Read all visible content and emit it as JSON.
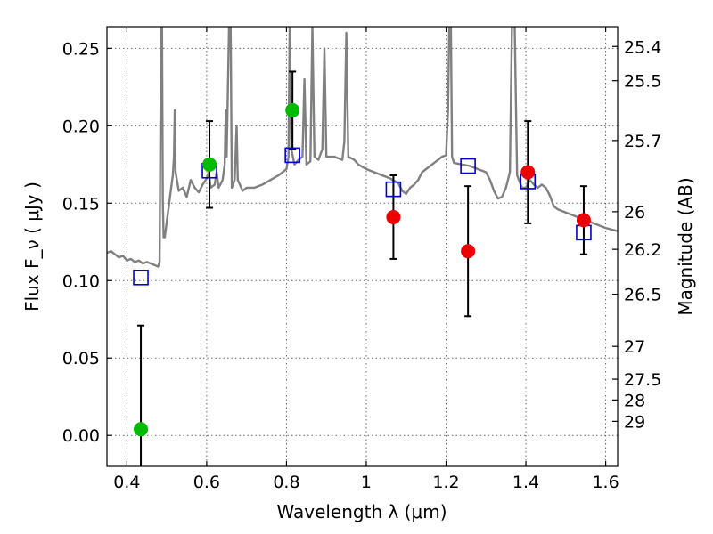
{
  "chart_data": {
    "type": "scatter",
    "xlabel": "Wavelength  λ (μm)",
    "ylabel": "Flux  F_ν  ( μJy )",
    "ylabel_right": "Magnitude (AB)",
    "xlim": [
      0.35,
      1.63
    ],
    "ylim": [
      -0.02,
      0.264
    ],
    "grid": true,
    "x_ticks": [
      {
        "value": 0.4,
        "label": "0.4"
      },
      {
        "value": 0.6,
        "label": "0.6"
      },
      {
        "value": 0.8,
        "label": "0.8"
      },
      {
        "value": 1.0,
        "label": "1"
      },
      {
        "value": 1.2,
        "label": "1.2"
      },
      {
        "value": 1.4,
        "label": "1.4"
      },
      {
        "value": 1.6,
        "label": "1.6"
      }
    ],
    "y_ticks": [
      {
        "value": 0.0,
        "label": "0.00"
      },
      {
        "value": 0.05,
        "label": "0.05"
      },
      {
        "value": 0.1,
        "label": "0.10"
      },
      {
        "value": 0.15,
        "label": "0.15"
      },
      {
        "value": 0.2,
        "label": "0.20"
      },
      {
        "value": 0.25,
        "label": "0.25"
      }
    ],
    "mag_ticks": [
      {
        "flux": 0.2512,
        "label": "25.4"
      },
      {
        "flux": 0.2291,
        "label": "25.5"
      },
      {
        "flux": 0.1905,
        "label": "25.7"
      },
      {
        "flux": 0.1445,
        "label": "26"
      },
      {
        "flux": 0.1202,
        "label": "26.2"
      },
      {
        "flux": 0.0912,
        "label": "26.5"
      },
      {
        "flux": 0.0575,
        "label": "27"
      },
      {
        "flux": 0.0363,
        "label": "27.5"
      },
      {
        "flux": 0.0229,
        "label": "28"
      },
      {
        "flux": 0.0091,
        "label": "29"
      }
    ],
    "model_spectrum": {
      "color": "#808080",
      "points": [
        [
          0.35,
          0.118
        ],
        [
          0.36,
          0.119
        ],
        [
          0.37,
          0.117
        ],
        [
          0.38,
          0.115
        ],
        [
          0.39,
          0.116
        ],
        [
          0.4,
          0.113
        ],
        [
          0.41,
          0.114
        ],
        [
          0.42,
          0.112
        ],
        [
          0.43,
          0.113
        ],
        [
          0.44,
          0.111
        ],
        [
          0.45,
          0.112
        ],
        [
          0.46,
          0.111
        ],
        [
          0.47,
          0.11
        ],
        [
          0.478,
          0.109
        ],
        [
          0.482,
          0.112
        ],
        [
          0.484,
          0.2
        ],
        [
          0.486,
          0.264
        ],
        [
          0.488,
          0.264
        ],
        [
          0.49,
          0.15
        ],
        [
          0.492,
          0.128
        ],
        [
          0.495,
          0.128
        ],
        [
          0.5,
          0.138
        ],
        [
          0.505,
          0.148
        ],
        [
          0.51,
          0.158
        ],
        [
          0.515,
          0.168
        ],
        [
          0.518,
          0.18
        ],
        [
          0.52,
          0.21
        ],
        [
          0.522,
          0.17
        ],
        [
          0.53,
          0.158
        ],
        [
          0.54,
          0.16
        ],
        [
          0.55,
          0.154
        ],
        [
          0.56,
          0.165
        ],
        [
          0.57,
          0.16
        ],
        [
          0.58,
          0.157
        ],
        [
          0.59,
          0.162
        ],
        [
          0.6,
          0.166
        ],
        [
          0.605,
          0.17
        ],
        [
          0.61,
          0.16
        ],
        [
          0.62,
          0.162
        ],
        [
          0.625,
          0.17
        ],
        [
          0.63,
          0.16
        ],
        [
          0.64,
          0.165
        ],
        [
          0.645,
          0.175
        ],
        [
          0.648,
          0.21
        ],
        [
          0.65,
          0.18
        ],
        [
          0.656,
          0.264
        ],
        [
          0.66,
          0.264
        ],
        [
          0.663,
          0.16
        ],
        [
          0.67,
          0.165
        ],
        [
          0.675,
          0.2
        ],
        [
          0.678,
          0.165
        ],
        [
          0.69,
          0.158
        ],
        [
          0.7,
          0.16
        ],
        [
          0.72,
          0.16
        ],
        [
          0.74,
          0.162
        ],
        [
          0.76,
          0.165
        ],
        [
          0.78,
          0.168
        ],
        [
          0.79,
          0.17
        ],
        [
          0.8,
          0.172
        ],
        [
          0.805,
          0.18
        ],
        [
          0.808,
          0.264
        ],
        [
          0.812,
          0.185
        ],
        [
          0.82,
          0.175
        ],
        [
          0.83,
          0.178
        ],
        [
          0.84,
          0.18
        ],
        [
          0.845,
          0.23
        ],
        [
          0.85,
          0.175
        ],
        [
          0.86,
          0.177
        ],
        [
          0.865,
          0.264
        ],
        [
          0.87,
          0.18
        ],
        [
          0.88,
          0.178
        ],
        [
          0.89,
          0.185
        ],
        [
          0.895,
          0.25
        ],
        [
          0.9,
          0.18
        ],
        [
          0.91,
          0.18
        ],
        [
          0.92,
          0.18
        ],
        [
          0.94,
          0.178
        ],
        [
          0.945,
          0.19
        ],
        [
          0.95,
          0.26
        ],
        [
          0.955,
          0.18
        ],
        [
          0.97,
          0.178
        ],
        [
          0.98,
          0.175
        ],
        [
          1.0,
          0.172
        ],
        [
          1.02,
          0.17
        ],
        [
          1.04,
          0.168
        ],
        [
          1.06,
          0.166
        ],
        [
          1.08,
          0.163
        ],
        [
          1.09,
          0.158
        ],
        [
          1.1,
          0.156
        ],
        [
          1.11,
          0.16
        ],
        [
          1.12,
          0.162
        ],
        [
          1.13,
          0.165
        ],
        [
          1.14,
          0.17
        ],
        [
          1.15,
          0.172
        ],
        [
          1.16,
          0.174
        ],
        [
          1.17,
          0.176
        ],
        [
          1.18,
          0.178
        ],
        [
          1.19,
          0.18
        ],
        [
          1.2,
          0.181
        ],
        [
          1.205,
          0.21
        ],
        [
          1.208,
          0.264
        ],
        [
          1.212,
          0.264
        ],
        [
          1.215,
          0.18
        ],
        [
          1.22,
          0.176
        ],
        [
          1.24,
          0.175
        ],
        [
          1.26,
          0.174
        ],
        [
          1.28,
          0.172
        ],
        [
          1.3,
          0.17
        ],
        [
          1.31,
          0.165
        ],
        [
          1.32,
          0.158
        ],
        [
          1.33,
          0.153
        ],
        [
          1.34,
          0.154
        ],
        [
          1.35,
          0.16
        ],
        [
          1.36,
          0.17
        ],
        [
          1.365,
          0.264
        ],
        [
          1.372,
          0.264
        ],
        [
          1.378,
          0.168
        ],
        [
          1.39,
          0.16
        ],
        [
          1.4,
          0.16
        ],
        [
          1.41,
          0.165
        ],
        [
          1.42,
          0.162
        ],
        [
          1.43,
          0.16
        ],
        [
          1.44,
          0.162
        ],
        [
          1.45,
          0.16
        ],
        [
          1.46,
          0.155
        ],
        [
          1.47,
          0.148
        ],
        [
          1.48,
          0.146
        ],
        [
          1.5,
          0.144
        ],
        [
          1.52,
          0.142
        ],
        [
          1.54,
          0.14
        ],
        [
          1.56,
          0.138
        ],
        [
          1.58,
          0.136
        ],
        [
          1.6,
          0.134
        ],
        [
          1.63,
          0.132
        ]
      ]
    },
    "series": [
      {
        "marker": "square",
        "color": "#0000cc",
        "points": [
          {
            "x": 0.435,
            "y": 0.102
          },
          {
            "x": 0.607,
            "y": 0.171
          },
          {
            "x": 0.815,
            "y": 0.181
          },
          {
            "x": 1.068,
            "y": 0.159
          },
          {
            "x": 1.255,
            "y": 0.174
          },
          {
            "x": 1.405,
            "y": 0.164
          },
          {
            "x": 1.545,
            "y": 0.131
          }
        ]
      },
      {
        "marker": "circle",
        "color": "#00bb00",
        "points": [
          {
            "x": 0.435,
            "y": 0.004,
            "err": 0.067
          },
          {
            "x": 0.607,
            "y": 0.175,
            "err": 0.028
          },
          {
            "x": 0.815,
            "y": 0.21,
            "err": 0.025
          }
        ]
      },
      {
        "marker": "circle",
        "color": "#ee0000",
        "points": [
          {
            "x": 1.068,
            "y": 0.141,
            "err": 0.027
          },
          {
            "x": 1.255,
            "y": 0.119,
            "err": 0.042
          },
          {
            "x": 1.405,
            "y": 0.17,
            "err": 0.033
          },
          {
            "x": 1.545,
            "y": 0.139,
            "err": 0.022
          }
        ]
      }
    ]
  }
}
